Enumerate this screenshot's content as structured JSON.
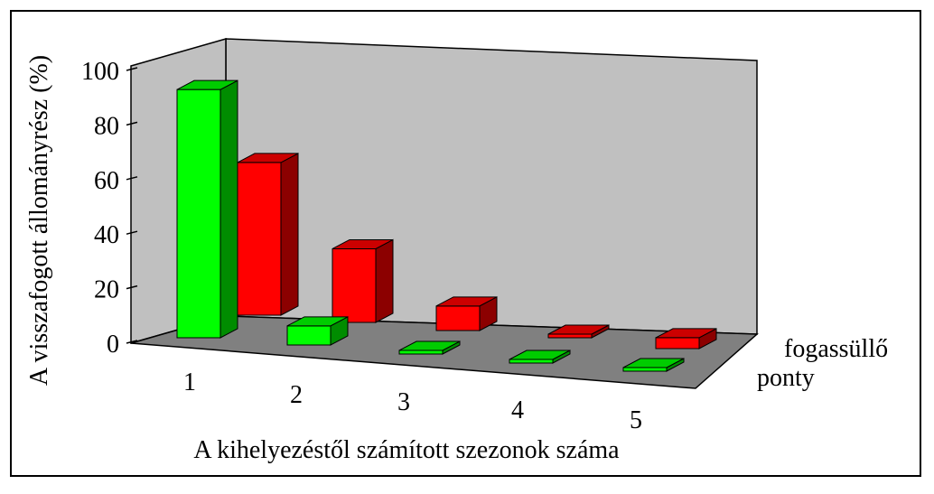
{
  "chart_data": {
    "type": "bar",
    "subtype": "3d-clustered-bar",
    "title": "",
    "xlabel": "A kihelyezéstől számított szezonok száma",
    "ylabel": "A visszafogott állományrész (%)",
    "ylim": [
      0,
      100
    ],
    "yticks": [
      "0",
      "20",
      "40",
      "60",
      "80",
      "100"
    ],
    "categories": [
      "1",
      "2",
      "3",
      "4",
      "5"
    ],
    "series": [
      {
        "name": "ponty",
        "color": "#00ff00",
        "values": [
          91,
          7,
          0.5,
          0.5,
          0.5
        ]
      },
      {
        "name": "fogassüllő",
        "color": "#ff0000",
        "values": [
          56,
          27,
          9,
          0.5,
          4
        ]
      }
    ],
    "background_walls": "#c0c0c0",
    "floor": "#808080",
    "grid": false
  }
}
